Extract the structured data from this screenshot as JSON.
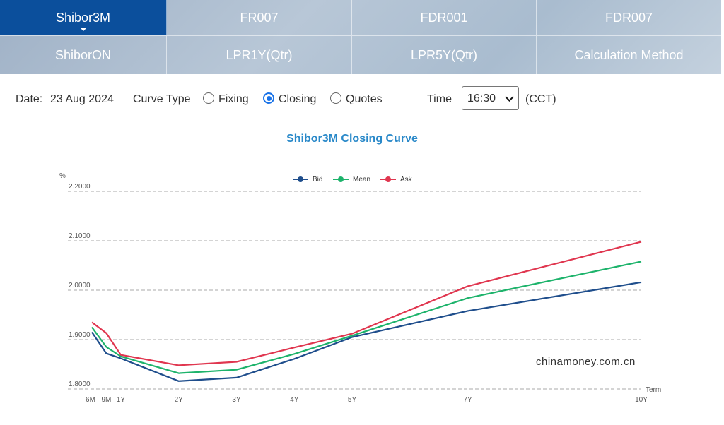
{
  "tabs": {
    "row1": [
      "Shibor3M",
      "FR007",
      "FDR001",
      "FDR007"
    ],
    "row2": [
      "ShiborON",
      "LPR1Y(Qtr)",
      "LPR5Y(Qtr)",
      "Calculation Method"
    ]
  },
  "controls": {
    "date_label": "Date:",
    "date_value": "23 Aug 2024",
    "curve_type_label": "Curve Type",
    "options": [
      "Fixing",
      "Closing",
      "Quotes"
    ],
    "selected_option": "Closing",
    "time_label": "Time",
    "time_value": "16:30",
    "timezone": "(CCT)"
  },
  "watermark": "chinamoney.com.cn",
  "colors": {
    "bid": "#1f4e8c",
    "mean": "#1db36b",
    "ask": "#e0364f",
    "active_tab": "#0b4f9c",
    "title": "#2a89c9"
  },
  "chart_data": {
    "type": "line",
    "title": "Shibor3M Closing Curve",
    "ylabel": "%",
    "xlabel": "Term",
    "x_years": [
      0.5,
      0.75,
      1,
      2,
      3,
      4,
      5,
      7,
      10
    ],
    "x_tick_labels": [
      "6M",
      "9M",
      "1Y",
      "2Y",
      "3Y",
      "4Y",
      "5Y",
      "7Y",
      "10Y"
    ],
    "y_ticks": [
      "1.8000",
      "1.9000",
      "2.0000",
      "2.1000",
      "2.2000"
    ],
    "ylim": [
      1.8,
      2.2
    ],
    "grid": "horizontal dashed",
    "legend_position": "top-center",
    "series": [
      {
        "name": "Bid",
        "color": "#1f4e8c",
        "values": [
          1.915,
          1.872,
          1.862,
          1.816,
          1.823,
          1.861,
          1.905,
          1.958,
          2.016
        ]
      },
      {
        "name": "Mean",
        "color": "#1db36b",
        "values": [
          1.925,
          1.885,
          1.866,
          1.832,
          1.839,
          1.871,
          1.908,
          1.984,
          2.058
        ]
      },
      {
        "name": "Ask",
        "color": "#e0364f",
        "values": [
          1.935,
          1.913,
          1.869,
          1.848,
          1.855,
          1.884,
          1.912,
          2.008,
          2.098
        ]
      }
    ]
  }
}
